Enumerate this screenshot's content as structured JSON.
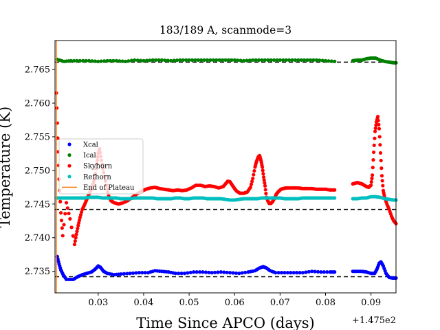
{
  "chart_data": {
    "type": "scatter",
    "title": "183/189 A, scanmode=3",
    "xlabel": "Time Since APCO (days)",
    "ylabel": "Temperature (K)",
    "x_offset_label": "+1.475e2",
    "xlim": [
      0.0205,
      0.0955
    ],
    "ylim": [
      2.7318,
      2.7693
    ],
    "xticks": [
      0.03,
      0.04,
      0.05,
      0.06,
      0.07,
      0.08,
      0.09
    ],
    "xtick_labels": [
      "0.03",
      "0.04",
      "0.05",
      "0.06",
      "0.07",
      "0.08",
      "0.09"
    ],
    "yticks": [
      2.735,
      2.74,
      2.745,
      2.75,
      2.755,
      2.76,
      2.765
    ],
    "ytick_labels": [
      "2.735",
      "2.740",
      "2.745",
      "2.750",
      "2.755",
      "2.760",
      "2.765"
    ],
    "legend_position": "center-left",
    "plateau_end_x": 0.0208,
    "dashed_reference_lines": [
      2.7342,
      2.7442,
      2.7661
    ],
    "series": [
      {
        "name": "Xcal",
        "color": "#0000ff",
        "segments": [
          {
            "x": [
              0.021,
              0.0214,
              0.0218,
              0.0223,
              0.023,
              0.0245,
              0.0255,
              0.0265,
              0.0275,
              0.0285,
              0.0293,
              0.03,
              0.0305,
              0.0312,
              0.032,
              0.0335,
              0.035,
              0.037,
              0.039,
              0.041,
              0.0425,
              0.044,
              0.0455,
              0.047,
              0.049,
              0.051,
              0.053,
              0.055,
              0.057,
              0.059,
              0.061,
              0.063,
              0.0645,
              0.0655,
              0.0663,
              0.067,
              0.0678,
              0.069,
              0.071,
              0.073,
              0.075,
              0.077,
              0.079,
              0.081,
              0.082
            ],
            "y": [
              2.7372,
              2.7361,
              2.7352,
              2.7345,
              2.7338,
              2.7338,
              2.7342,
              2.7345,
              2.7347,
              2.7349,
              2.7353,
              2.7358,
              2.7356,
              2.735,
              2.7347,
              2.7345,
              2.7346,
              2.7347,
              2.7348,
              2.7348,
              2.7351,
              2.735,
              2.7349,
              2.7347,
              2.7347,
              2.7349,
              2.7349,
              2.7348,
              2.7349,
              2.7348,
              2.7347,
              2.7349,
              2.7351,
              2.7355,
              2.7357,
              2.7355,
              2.7351,
              2.7348,
              2.7348,
              2.7348,
              2.7348,
              2.735,
              2.7349,
              2.7349,
              2.7349
            ]
          },
          {
            "x": [
              0.086,
              0.087,
              0.088,
              0.089,
              0.09,
              0.0908,
              0.0913,
              0.0918,
              0.0922,
              0.0927,
              0.0933,
              0.094,
              0.0948,
              0.0955
            ],
            "y": [
              2.735,
              2.735,
              2.735,
              2.7349,
              2.7347,
              2.7347,
              2.7353,
              2.7362,
              2.7364,
              2.7358,
              2.7347,
              2.7341,
              2.734,
              2.734
            ]
          }
        ]
      },
      {
        "name": "Ical",
        "color": "#008000",
        "segments": [
          {
            "x": [
              0.021,
              0.0225,
              0.024,
              0.026,
              0.028,
              0.03,
              0.032,
              0.034,
              0.036,
              0.038,
              0.04,
              0.042,
              0.044,
              0.046,
              0.048,
              0.05,
              0.052,
              0.054,
              0.056,
              0.058,
              0.06,
              0.062,
              0.064,
              0.066,
              0.068,
              0.07,
              0.072,
              0.074,
              0.076,
              0.078,
              0.08,
              0.082
            ],
            "y": [
              2.7665,
              2.7662,
              2.7663,
              2.7663,
              2.7663,
              2.7662,
              2.7663,
              2.7663,
              2.7662,
              2.7664,
              2.7663,
              2.7664,
              2.7664,
              2.7663,
              2.7664,
              2.7664,
              2.7664,
              2.7664,
              2.7664,
              2.7664,
              2.7664,
              2.7663,
              2.7664,
              2.7664,
              2.7664,
              2.7664,
              2.7664,
              2.7664,
              2.7664,
              2.7664,
              2.7663,
              2.7662
            ]
          },
          {
            "x": [
              0.086,
              0.087,
              0.088,
              0.089,
              0.09,
              0.091,
              0.092,
              0.093,
              0.094,
              0.095,
              0.0955
            ],
            "y": [
              2.7663,
              2.7664,
              2.7664,
              2.7666,
              2.7667,
              2.7667,
              2.7664,
              2.7662,
              2.7661,
              2.766,
              2.766
            ]
          }
        ]
      },
      {
        "name": "Skyhorn",
        "color": "#ff0000",
        "segments": [
          {
            "x": [
              0.0208,
              0.0211,
              0.0214,
              0.0218,
              0.0222,
              0.023,
              0.0238,
              0.0248,
              0.0252,
              0.0256,
              0.026,
              0.0265,
              0.027,
              0.0275,
              0.028,
              0.0287,
              0.0292,
              0.0297,
              0.03,
              0.0303,
              0.0307,
              0.0312,
              0.0318,
              0.0323,
              0.0328,
              0.0335,
              0.0345,
              0.0355,
              0.0365,
              0.0375,
              0.0385,
              0.0395,
              0.0405,
              0.0415,
              0.0425,
              0.0435,
              0.0445,
              0.0455,
              0.0465,
              0.0475,
              0.0485,
              0.0495,
              0.0505,
              0.0515,
              0.0525,
              0.0535,
              0.0545,
              0.0555,
              0.0565,
              0.0575,
              0.058,
              0.0585,
              0.059,
              0.0595,
              0.06,
              0.0605,
              0.0612,
              0.062,
              0.0628,
              0.0635,
              0.064,
              0.0645,
              0.0648,
              0.0652,
              0.0655,
              0.0658,
              0.0661,
              0.0664,
              0.0667,
              0.067,
              0.0673,
              0.0676,
              0.068,
              0.0684,
              0.0688,
              0.0692,
              0.0697,
              0.0702,
              0.0707,
              0.0713,
              0.072,
              0.073,
              0.074,
              0.075,
              0.076,
              0.077,
              0.078,
              0.079,
              0.08,
              0.081,
              0.082
            ],
            "y": [
              2.7615,
              2.7548,
              2.7487,
              2.7437,
              2.7403,
              2.7452,
              2.7428,
              2.739,
              2.7405,
              2.7418,
              2.743,
              2.7442,
              2.7449,
              2.7457,
              2.7465,
              2.7475,
              2.7488,
              2.751,
              2.7525,
              2.7532,
              2.7515,
              2.7497,
              2.7478,
              2.7462,
              2.7455,
              2.7452,
              2.745,
              2.7452,
              2.7455,
              2.746,
              2.7465,
              2.7469,
              2.7472,
              2.7474,
              2.7475,
              2.7473,
              2.7472,
              2.7471,
              2.747,
              2.7471,
              2.747,
              2.7471,
              2.7474,
              2.7478,
              2.7478,
              2.7476,
              2.7477,
              2.7476,
              2.7474,
              2.7476,
              2.748,
              2.7484,
              2.7483,
              2.7478,
              2.7473,
              2.7469,
              2.7466,
              2.7466,
              2.7468,
              2.7475,
              2.7488,
              2.7505,
              2.7513,
              2.752,
              2.7522,
              2.7515,
              2.7505,
              2.749,
              2.7477,
              2.746,
              2.7455,
              2.7451,
              2.7451,
              2.7454,
              2.7459,
              2.7465,
              2.7469,
              2.7472,
              2.7473,
              2.7474,
              2.7474,
              2.7474,
              2.7474,
              2.7473,
              2.7473,
              2.7473,
              2.7472,
              2.7472,
              2.7472,
              2.7471,
              2.7471
            ]
          },
          {
            "x": [
              0.086,
              0.0865,
              0.087,
              0.0875,
              0.088,
              0.0885,
              0.089,
              0.0895,
              0.09,
              0.0903,
              0.0906,
              0.0909,
              0.0912,
              0.0915,
              0.0918,
              0.0921,
              0.0924,
              0.0927,
              0.093,
              0.0935,
              0.094,
              0.0945,
              0.095,
              0.0955
            ],
            "y": [
              2.748,
              2.7481,
              2.7482,
              2.7481,
              2.748,
              2.7478,
              2.7476,
              2.7475,
              2.7478,
              2.7493,
              2.7527,
              2.7558,
              2.7572,
              2.758,
              2.7562,
              2.7526,
              2.7492,
              2.747,
              2.746,
              2.745,
              2.7442,
              2.7432,
              2.7425,
              2.7421
            ]
          }
        ]
      },
      {
        "name": "Refhorn",
        "color": "#00bfbf",
        "segments": [
          {
            "x": [
              0.021,
              0.022,
              0.023,
              0.024,
              0.025,
              0.026,
              0.027,
              0.028,
              0.029,
              0.03,
              0.031,
              0.032,
              0.033,
              0.034,
              0.035,
              0.036,
              0.037,
              0.038,
              0.039,
              0.04,
              0.041,
              0.042,
              0.043,
              0.044,
              0.045,
              0.046,
              0.047,
              0.048,
              0.049,
              0.05,
              0.051,
              0.052,
              0.053,
              0.054,
              0.055,
              0.056,
              0.057,
              0.058,
              0.059,
              0.06,
              0.061,
              0.062,
              0.063,
              0.064,
              0.065,
              0.066,
              0.067,
              0.068,
              0.069,
              0.07,
              0.071,
              0.072,
              0.073,
              0.074,
              0.075,
              0.076,
              0.077,
              0.078,
              0.079,
              0.08,
              0.081,
              0.082
            ],
            "y": [
              2.7459,
              2.7459,
              2.7459,
              2.7459,
              2.7459,
              2.7459,
              2.7459,
              2.746,
              2.746,
              2.746,
              2.7459,
              2.7459,
              2.7459,
              2.7459,
              2.7458,
              2.7458,
              2.7458,
              2.7459,
              2.7459,
              2.7459,
              2.7459,
              2.7459,
              2.7458,
              2.7458,
              2.7458,
              2.7458,
              2.7459,
              2.7459,
              2.7458,
              2.7458,
              2.7459,
              2.7459,
              2.7459,
              2.7458,
              2.7458,
              2.7458,
              2.7458,
              2.7457,
              2.7456,
              2.7456,
              2.7457,
              2.7458,
              2.7458,
              2.7458,
              2.7458,
              2.7459,
              2.7459,
              2.7459,
              2.7459,
              2.7459,
              2.7458,
              2.7458,
              2.7458,
              2.7458,
              2.7459,
              2.7459,
              2.7459,
              2.7459,
              2.7459,
              2.7459,
              2.7459,
              2.7459
            ]
          },
          {
            "x": [
              0.086,
              0.087,
              0.088,
              0.089,
              0.09,
              0.091,
              0.092,
              0.093,
              0.094,
              0.095,
              0.0955
            ],
            "y": [
              2.7458,
              2.7458,
              2.7459,
              2.7459,
              2.7461,
              2.7461,
              2.746,
              2.7458,
              2.7457,
              2.7456,
              2.7456
            ]
          }
        ]
      }
    ],
    "legend": [
      {
        "label": "Xcal",
        "marker": "dot",
        "color": "#0000ff"
      },
      {
        "label": "Ical",
        "marker": "dot",
        "color": "#008000"
      },
      {
        "label": "Skyhorn",
        "marker": "dot",
        "color": "#ff0000"
      },
      {
        "label": "Refhorn",
        "marker": "dot",
        "color": "#00bfbf"
      },
      {
        "label": "End of Plateau",
        "marker": "line",
        "color": "#ff7f0e"
      }
    ]
  }
}
